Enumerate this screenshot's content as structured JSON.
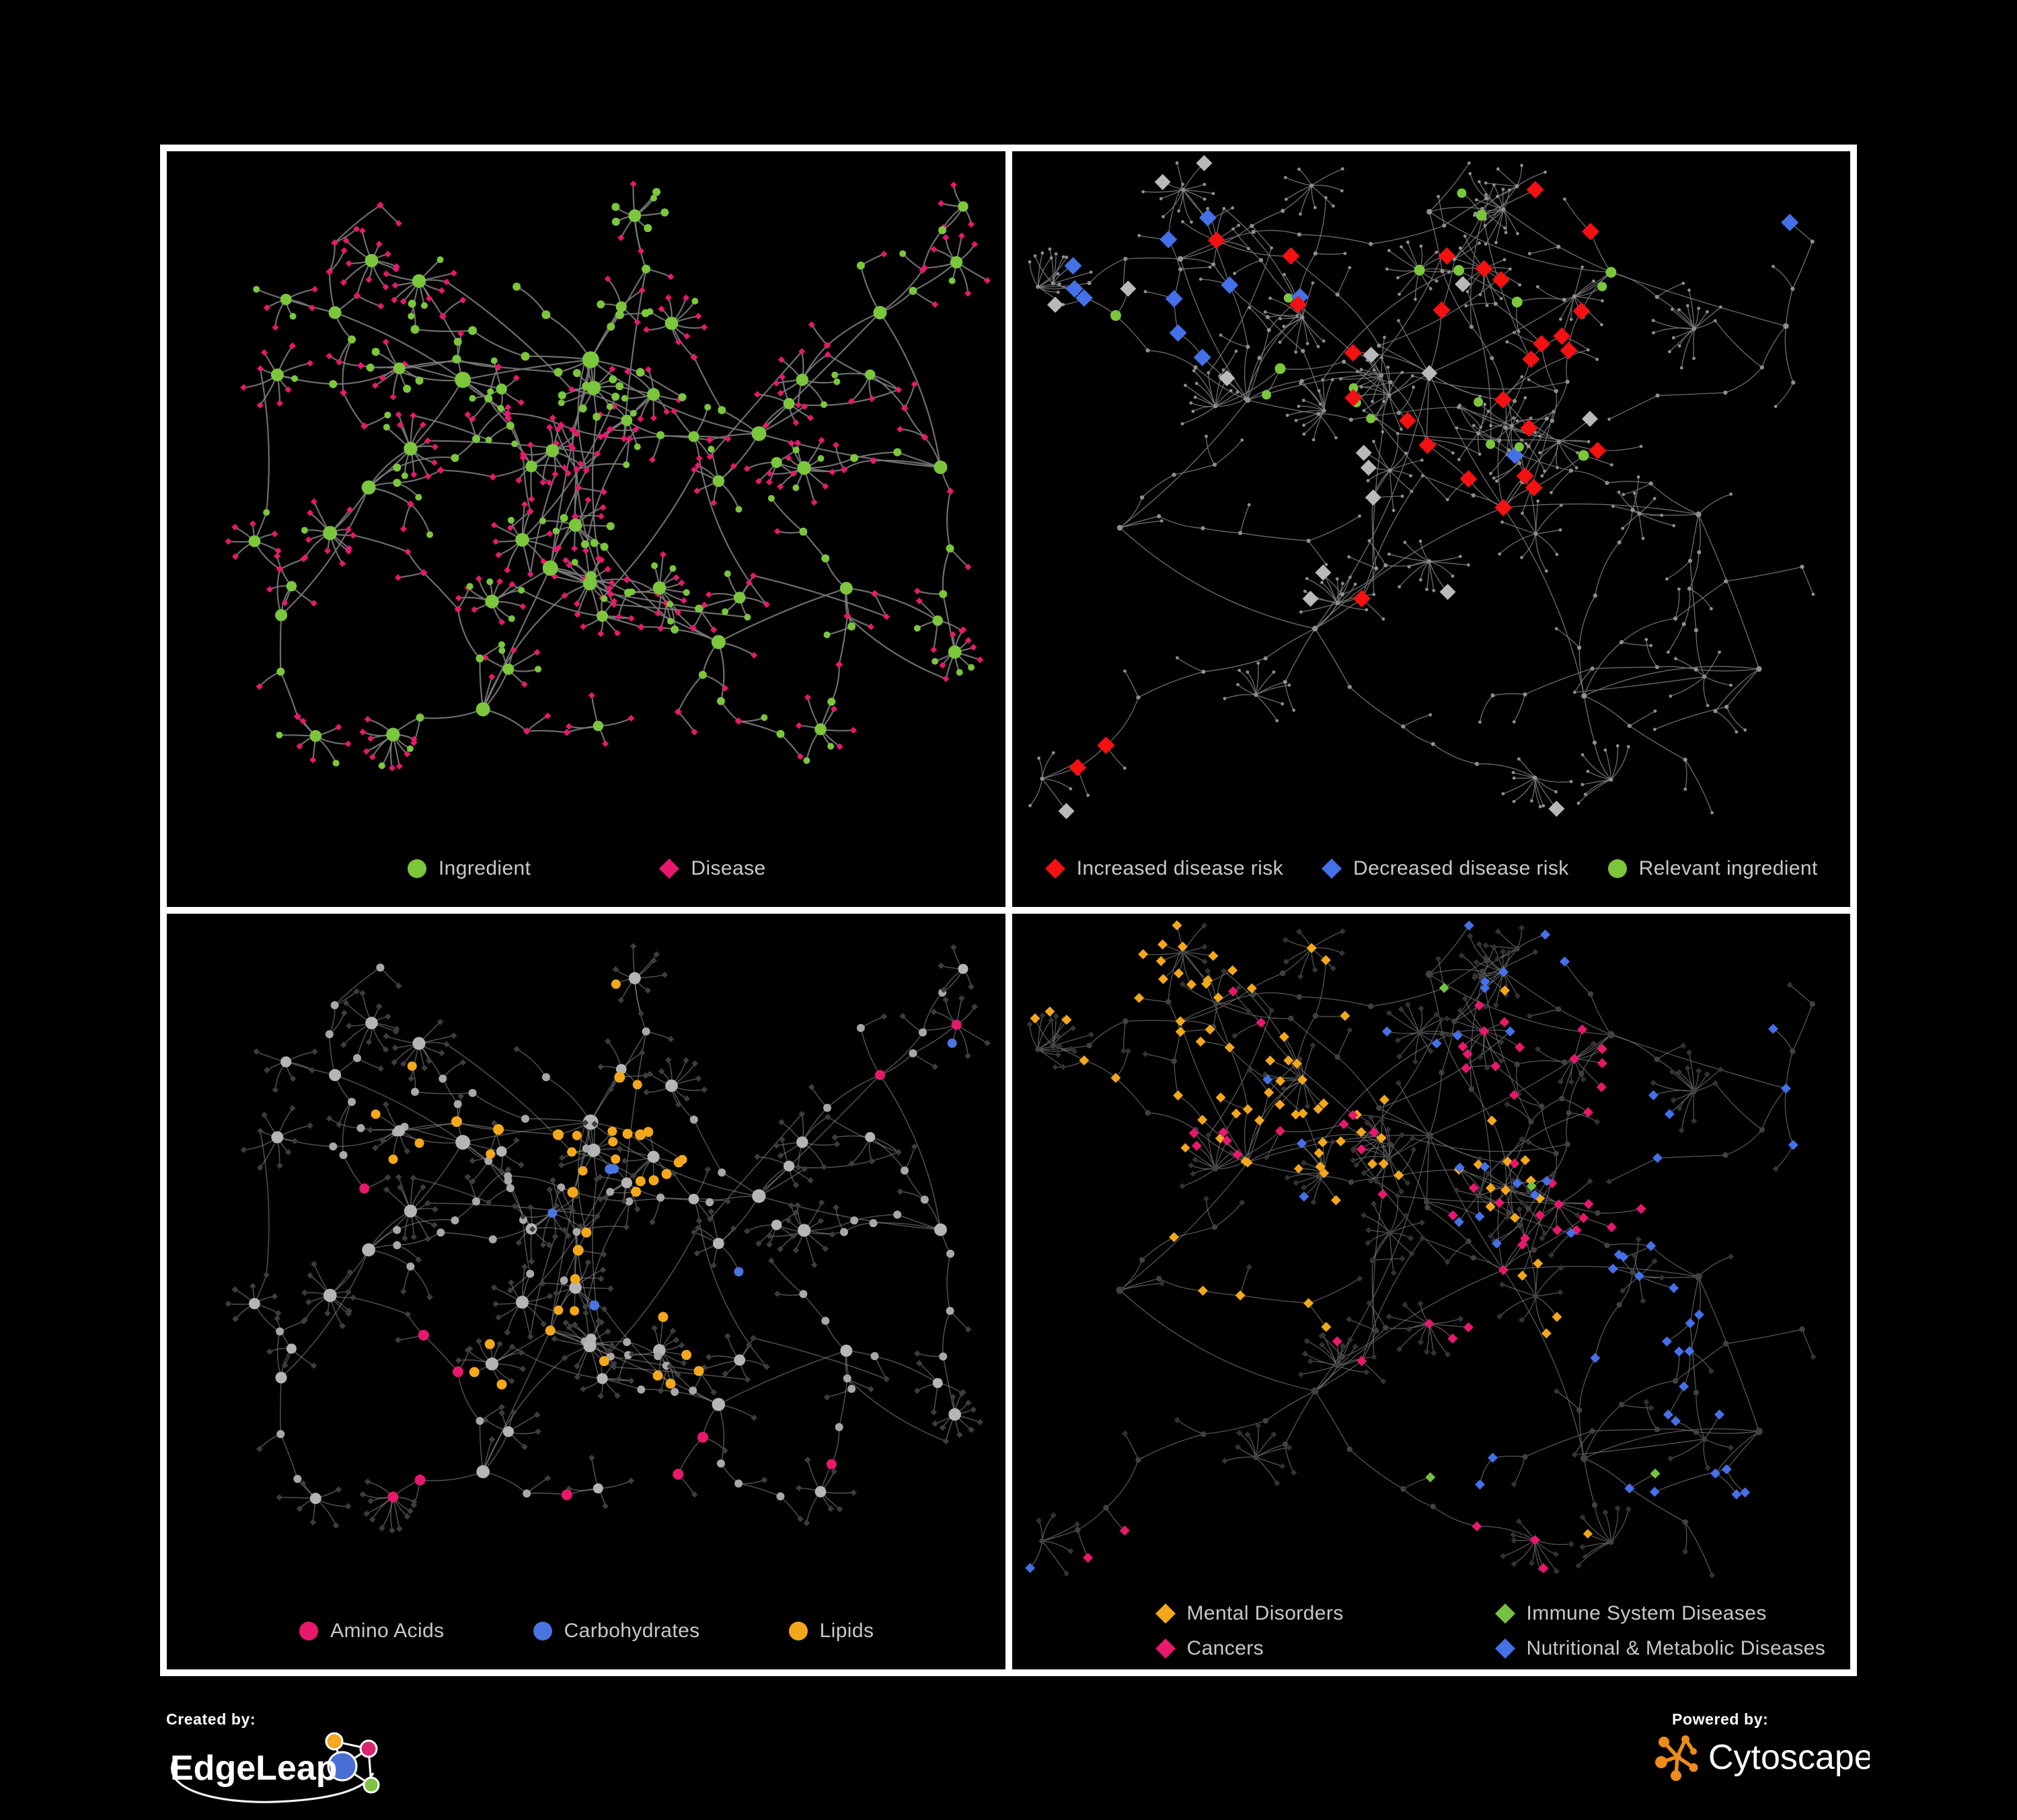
{
  "figure": {
    "background": "#000000",
    "frame_color": "#ffffff",
    "legend_text_color": "#c8c8c8"
  },
  "panels": [
    {
      "name": "ingredient-disease-network",
      "legend": [
        {
          "label": "Ingredient",
          "shape": "circle",
          "color": "#7cc63c"
        },
        {
          "label": "Disease",
          "shape": "diamond",
          "color": "#e8186d"
        }
      ],
      "net": {
        "layout": "left",
        "edge": {
          "color": "#7a7a7a",
          "width": 2.2,
          "opacity": 0.9
        },
        "palette": {
          "ingredient": "#7cc63c",
          "disease": "#e8186d"
        }
      }
    },
    {
      "name": "disease-risk-network",
      "legend": [
        {
          "label": "Increased disease risk",
          "shape": "diamond",
          "color": "#f31111"
        },
        {
          "label": "Decreased disease risk",
          "shape": "diamond",
          "color": "#4470e8"
        },
        {
          "label": "Relevant ingredient",
          "shape": "circle",
          "color": "#7cc63c"
        }
      ],
      "net": {
        "layout": "right",
        "edge": {
          "color": "#7d7d7d",
          "width": 1.35,
          "opacity": 0.85
        },
        "palette": {
          "increased": "#f31111",
          "decreased": "#4470e8",
          "relevant": "#7cc63c",
          "neutral": "#b9b9b9",
          "base": "#8f8f8f"
        }
      }
    },
    {
      "name": "nutrient-class-network",
      "legend": [
        {
          "label": "Amino Acids",
          "shape": "circle",
          "color": "#e8186d"
        },
        {
          "label": "Carbohydrates",
          "shape": "circle",
          "color": "#4a74e0"
        },
        {
          "label": "Lipids",
          "shape": "circle",
          "color": "#f3a81b"
        }
      ],
      "net": {
        "layout": "left",
        "edge": {
          "color": "#979797",
          "width": 1.6,
          "opacity": 0.5
        },
        "palette": {
          "amino": "#e8186d",
          "carbs": "#4a74e0",
          "lipids": "#f3a81b",
          "node": "#a8a8a8",
          "hub": "#b5b5b5",
          "dim": "#3d3d3d"
        }
      }
    },
    {
      "name": "disease-class-network",
      "legend": [
        {
          "label": "Mental Disorders",
          "shape": "diamond",
          "color": "#f3a81b"
        },
        {
          "label": "Immune System Diseases",
          "shape": "diamond",
          "color": "#76c043"
        },
        {
          "label": "Cancers",
          "shape": "diamond",
          "color": "#e8186d"
        },
        {
          "label": "Nutritional & Metabolic Diseases",
          "shape": "diamond",
          "color": "#4470e8"
        }
      ],
      "net": {
        "layout": "right",
        "edge": {
          "color": "#6e6e6e",
          "width": 1.25,
          "opacity": 0.8
        },
        "palette": {
          "mental": "#f3a81b",
          "immune": "#76c043",
          "cancers": "#e8186d",
          "metabolic": "#4470e8",
          "baseDiamond": "#333333",
          "baseCircle": "#414141"
        }
      }
    }
  ],
  "footer": {
    "created_by_label": "Created by:",
    "created_by_name": "EdgeLeap",
    "powered_by_label": "Powered by:",
    "powered_by_name": "Cytoscape",
    "edgeleap_colors": {
      "orange": "#f5a623",
      "magenta": "#d6246e",
      "blue": "#4a6fd4",
      "green": "#7dc242"
    },
    "cytoscape_color": "#ed8c1c"
  }
}
